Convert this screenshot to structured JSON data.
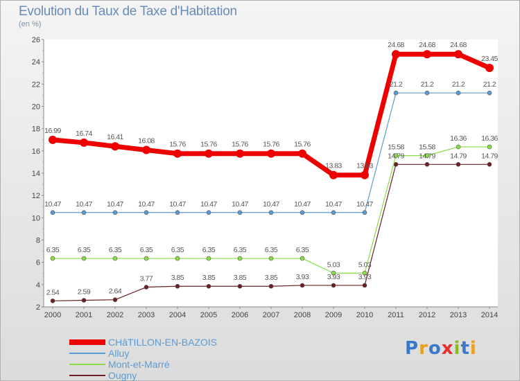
{
  "title": "Evolution du Taux de Taxe d'Habitation",
  "unit_label": "(en %)",
  "logo_text": "Proxiti",
  "chart_data": {
    "type": "line",
    "title": "Evolution du Taux de Taxe d'Habitation",
    "ylabel": "(en %)",
    "xlabel": "",
    "x": [
      "2000",
      "2001",
      "2002",
      "2003",
      "2004",
      "2005",
      "2006",
      "2007",
      "2008",
      "2009",
      "2010",
      "2011",
      "2012",
      "2013",
      "2014"
    ],
    "ylim": [
      2,
      26
    ],
    "yticks": [
      2,
      4,
      6,
      8,
      10,
      12,
      14,
      16,
      18,
      20,
      22,
      24,
      26
    ],
    "grid": false,
    "legend_position": "bottom-left",
    "series": [
      {
        "name": "CHâTILLON-EN-BAZOIS",
        "color": "#ee0000",
        "values": [
          16.99,
          16.74,
          16.41,
          16.08,
          15.76,
          15.76,
          15.76,
          15.76,
          15.76,
          13.83,
          13.83,
          24.68,
          24.68,
          24.68,
          23.45
        ],
        "labels": [
          "16.99",
          "16.74",
          "16.41",
          "16.08",
          "15.76",
          "15.76",
          "15.76",
          "15.76",
          "15.76",
          "13.83",
          "13.83",
          "24.68",
          "24.68",
          "24.68",
          "23.45"
        ]
      },
      {
        "name": "Alluy",
        "color": "#5b9bd5",
        "values": [
          10.47,
          10.47,
          10.47,
          10.47,
          10.47,
          10.47,
          10.47,
          10.47,
          10.47,
          10.47,
          10.47,
          21.2,
          21.2,
          21.2,
          21.2
        ],
        "labels": [
          "10.47",
          "10.47",
          "10.47",
          "10.47",
          "10.47",
          "10.47",
          "10.47",
          "10.47",
          "10.47",
          "10.47",
          "10.47",
          "21.2",
          "21.2",
          "21.2",
          "21.2"
        ]
      },
      {
        "name": "Mont-et-Marré",
        "color": "#88dd44",
        "values": [
          6.35,
          6.35,
          6.35,
          6.35,
          6.35,
          6.35,
          6.35,
          6.35,
          6.35,
          5.03,
          5.03,
          15.58,
          15.58,
          16.36,
          16.36
        ],
        "labels": [
          "6.35",
          "6.35",
          "6.35",
          "6.35",
          "6.35",
          "6.35",
          "6.35",
          "6.35",
          "6.35",
          "5.03",
          "5.03",
          "15.58",
          "15.58",
          "16.36",
          "16.36"
        ]
      },
      {
        "name": "Ougny",
        "color": "#6b1f24",
        "values": [
          2.54,
          2.59,
          2.64,
          3.77,
          3.85,
          3.85,
          3.85,
          3.85,
          3.93,
          3.93,
          3.93,
          14.79,
          14.79,
          14.79,
          14.79
        ],
        "labels": [
          "2.54",
          "2.59",
          "2.64",
          "3.77",
          "3.85",
          "3.85",
          "3.85",
          "3.85",
          "3.93",
          "3.93",
          "3.93",
          "14.79",
          "14.79",
          "14.79",
          "14.79"
        ]
      }
    ]
  }
}
